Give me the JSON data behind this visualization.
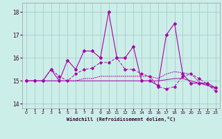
{
  "xlabel": "Windchill (Refroidissement éolien,°C)",
  "x_ticks": [
    0,
    1,
    2,
    3,
    4,
    5,
    6,
    7,
    8,
    9,
    10,
    11,
    12,
    13,
    14,
    15,
    16,
    17,
    18,
    19,
    20,
    21,
    22,
    23
  ],
  "ylim": [
    13.8,
    18.4
  ],
  "yticks": [
    14,
    15,
    16,
    17,
    18
  ],
  "xlim": [
    -0.5,
    23.5
  ],
  "bg_color": "#cceee8",
  "line_color": "#aa00aa",
  "grid_color": "#aacccc",
  "series": [
    [
      15.0,
      15.0,
      15.0,
      15.5,
      15.0,
      15.9,
      15.5,
      16.3,
      16.3,
      16.0,
      18.0,
      16.0,
      16.0,
      16.5,
      15.0,
      15.0,
      14.8,
      17.0,
      17.5,
      15.3,
      14.9,
      14.9,
      14.9,
      14.7
    ],
    [
      15.0,
      15.0,
      15.0,
      15.5,
      15.2,
      15.0,
      15.3,
      15.5,
      15.55,
      15.8,
      15.8,
      16.0,
      15.5,
      15.5,
      15.3,
      15.2,
      14.75,
      14.65,
      14.75,
      15.2,
      15.3,
      15.1,
      14.85,
      14.55
    ],
    [
      15.0,
      15.0,
      15.0,
      15.0,
      15.0,
      15.0,
      15.0,
      15.1,
      15.1,
      15.2,
      15.2,
      15.2,
      15.2,
      15.2,
      15.2,
      15.2,
      15.1,
      15.3,
      15.4,
      15.35,
      15.3,
      14.95,
      14.8,
      14.65
    ],
    [
      15.0,
      15.0,
      15.0,
      15.0,
      15.0,
      15.0,
      15.0,
      15.0,
      15.0,
      15.0,
      15.0,
      15.0,
      15.0,
      15.0,
      15.0,
      15.0,
      15.0,
      15.05,
      15.1,
      15.1,
      15.0,
      14.9,
      14.8,
      14.7
    ]
  ]
}
